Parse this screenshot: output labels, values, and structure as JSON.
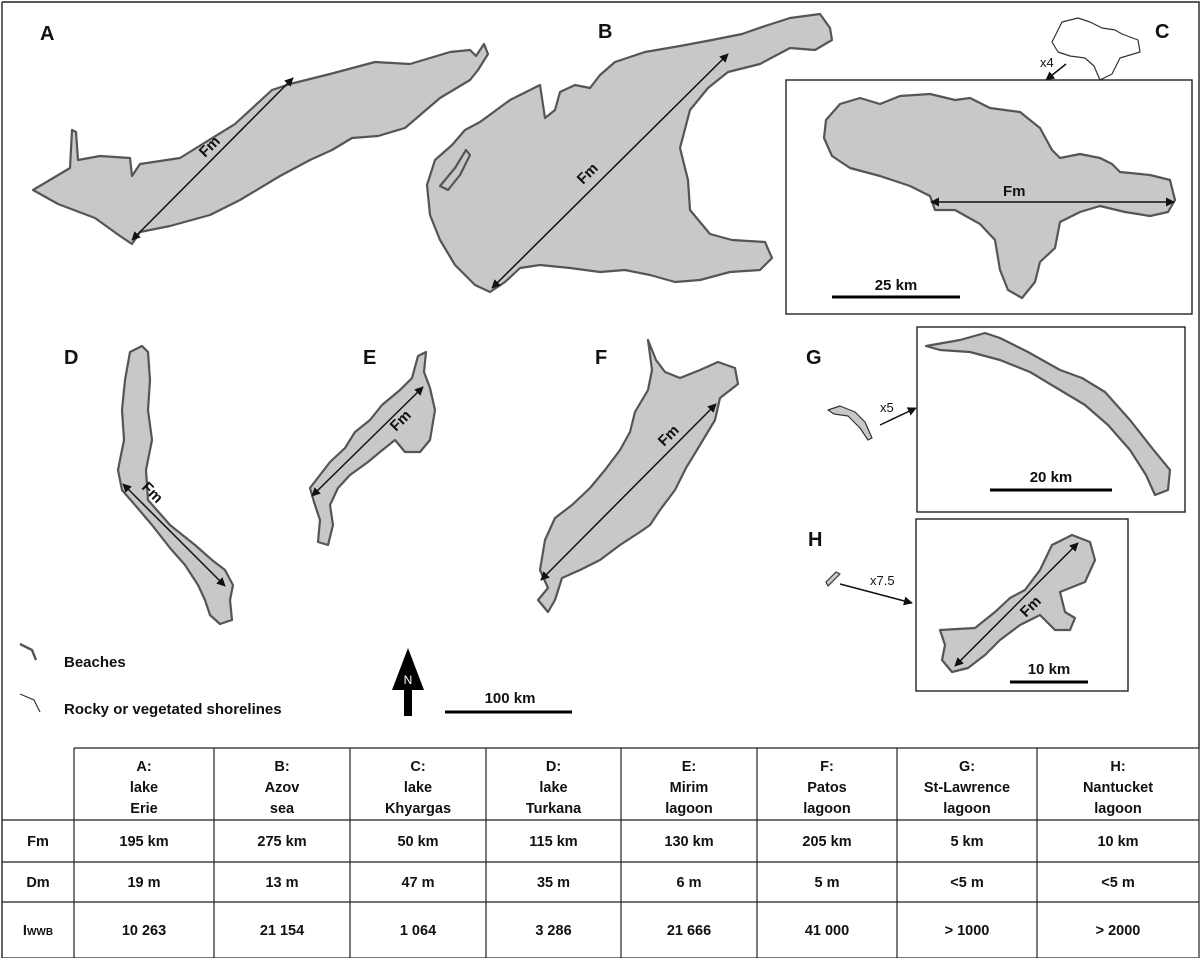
{
  "panels": {
    "A": {
      "letter": "A",
      "arrow_label": "Fm"
    },
    "B": {
      "letter": "B",
      "arrow_label": "Fm"
    },
    "C": {
      "letter": "C",
      "arrow_label": "Fm",
      "zoom": "x4",
      "scale": "25 km"
    },
    "D": {
      "letter": "D",
      "arrow_label": "Fm"
    },
    "E": {
      "letter": "E",
      "arrow_label": "Fm"
    },
    "F": {
      "letter": "F",
      "arrow_label": "Fm"
    },
    "G": {
      "letter": "G",
      "zoom": "x5",
      "scale": "20 km"
    },
    "H": {
      "letter": "H",
      "arrow_label": "Fm",
      "zoom": "x7.5",
      "scale": "10 km"
    }
  },
  "main_scale": "100 km",
  "north_label": "N",
  "legend": {
    "beaches": "Beaches",
    "rocky": "Rocky or vegetated shorelines"
  },
  "colors": {
    "water_fill": "#c8c8c8",
    "beach_stroke": "#555555",
    "rocky_stroke": "#333333"
  },
  "table": {
    "columns": [
      {
        "l1": "A:",
        "l2": "lake",
        "l3": "Erie"
      },
      {
        "l1": "B:",
        "l2": "Azov",
        "l3": "sea"
      },
      {
        "l1": "C:",
        "l2": "lake",
        "l3": "Khyargas"
      },
      {
        "l1": "D:",
        "l2": "lake",
        "l3": "Turkana"
      },
      {
        "l1": "E:",
        "l2": "Mirim",
        "l3": "lagoon"
      },
      {
        "l1": "F:",
        "l2": "Patos",
        "l3": "lagoon"
      },
      {
        "l1": "G:",
        "l2": "St-Lawrence",
        "l3": "lagoon"
      },
      {
        "l1": "H:",
        "l2": "Nantucket",
        "l3": "lagoon"
      }
    ],
    "rows": [
      {
        "label": "Fm",
        "values": [
          "195 km",
          "275 km",
          "50 km",
          "115 km",
          "130 km",
          "205 km",
          "5 km",
          "10 km"
        ]
      },
      {
        "label": "Dm",
        "values": [
          "19 m",
          "13 m",
          "47 m",
          "35 m",
          "6 m",
          "5 m",
          "<5 m",
          "<5 m"
        ]
      },
      {
        "label_main": "I",
        "label_sub": "WWB",
        "values": [
          "10 263",
          "21 154",
          "1 064",
          "3 286",
          "21 666",
          "41 000",
          "> 1000",
          "> 2000"
        ]
      }
    ]
  }
}
